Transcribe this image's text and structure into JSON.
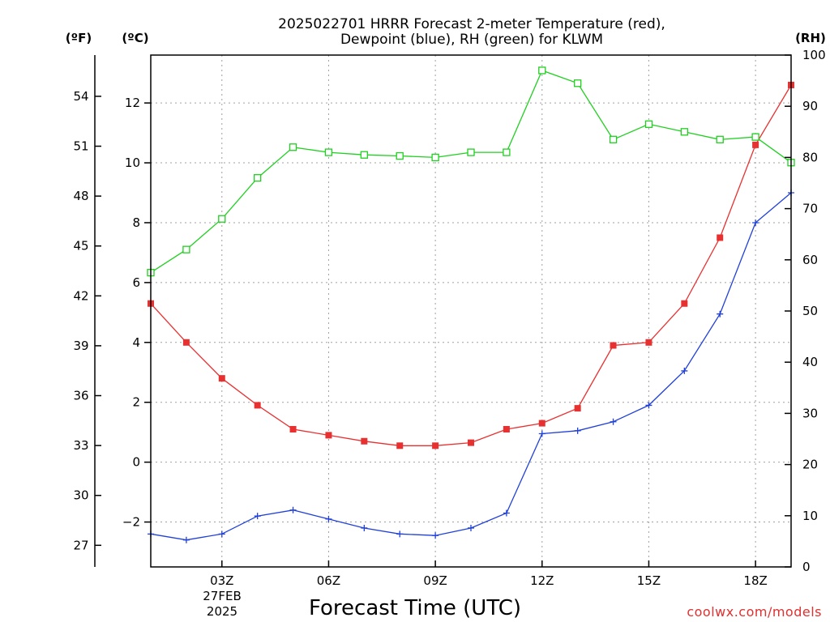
{
  "title_line1": "2025022701 HRRR Forecast 2-meter Temperature (red),",
  "title_line2": "Dewpoint (blue), RH (green) for KLWM",
  "unit_f": "(ºF)",
  "unit_c": "(ºC)",
  "unit_rh": "(RH)",
  "xlabel": "Forecast Time (UTC)",
  "date_line1": "27FEB",
  "date_line2": "2025",
  "credit": "coolwx.com/models",
  "colors": {
    "temperature": "#e83030",
    "dewpoint": "#2040d8",
    "rh": "#20d020"
  },
  "chart_data": {
    "type": "line",
    "x_hours": [
      1,
      2,
      3,
      4,
      5,
      6,
      7,
      8,
      9,
      10,
      11,
      12,
      13,
      14,
      15,
      16,
      17,
      18,
      19
    ],
    "x_tick_labels": [
      {
        "hour": 3,
        "label": "03Z"
      },
      {
        "hour": 6,
        "label": "06Z"
      },
      {
        "hour": 9,
        "label": "09Z"
      },
      {
        "hour": 12,
        "label": "12Z"
      },
      {
        "hour": 15,
        "label": "15Z"
      },
      {
        "hour": 18,
        "label": "18Z"
      }
    ],
    "xlim": [
      1,
      19
    ],
    "ylim_c": [
      -3.5,
      13.6
    ],
    "ylim_rh": [
      0,
      100
    ],
    "y_ticks_c": [
      "-2",
      "0",
      "2",
      "4",
      "6",
      "8",
      "10",
      "12"
    ],
    "y_ticks_f": [
      "27",
      "30",
      "33",
      "36",
      "39",
      "42",
      "45",
      "48",
      "51",
      "54"
    ],
    "y_ticks_rh": [
      "0",
      "10",
      "20",
      "30",
      "40",
      "50",
      "60",
      "70",
      "80",
      "90",
      "100"
    ],
    "grid": true,
    "series": [
      {
        "name": "Temperature (red)",
        "axis": "c",
        "marker": "filled-square",
        "values": [
          5.3,
          4.0,
          2.8,
          1.9,
          1.1,
          0.9,
          0.7,
          0.55,
          0.55,
          0.65,
          1.1,
          1.3,
          1.8,
          3.9,
          4.0,
          5.3,
          7.5,
          10.6,
          12.6
        ]
      },
      {
        "name": "Dewpoint (blue)",
        "axis": "c",
        "marker": "plus",
        "values": [
          -2.4,
          -2.6,
          -2.4,
          -1.8,
          -1.6,
          -1.9,
          -2.2,
          -2.4,
          -2.45,
          -2.2,
          -1.7,
          0.95,
          1.05,
          1.35,
          1.9,
          3.05,
          4.95,
          8.0,
          9.0
        ]
      },
      {
        "name": "RH (green)",
        "axis": "rh",
        "marker": "open-square",
        "values": [
          57.5,
          62,
          68,
          76,
          82,
          81,
          80.5,
          80.3,
          80,
          81,
          81,
          97,
          94.5,
          83.5,
          86.5,
          85,
          83.5,
          84,
          79
        ]
      }
    ]
  }
}
